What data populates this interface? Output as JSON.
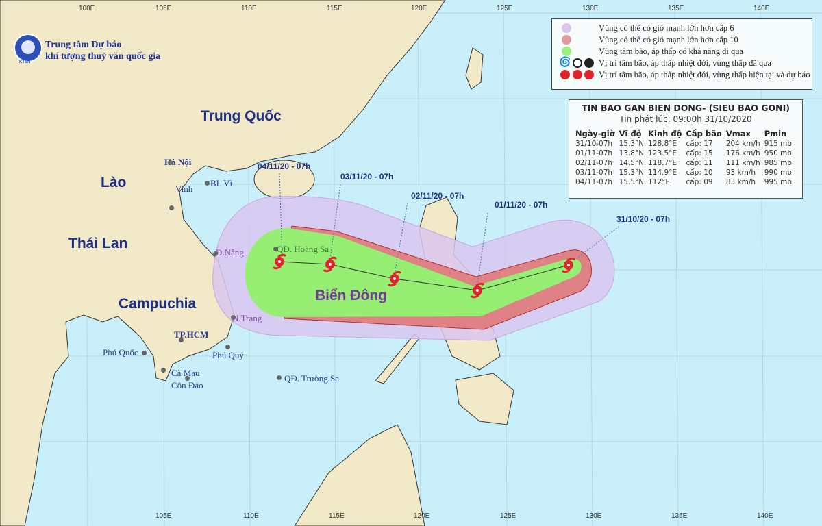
{
  "logo": {
    "badge": "KTVN",
    "line1": "Trung tâm Dự báo",
    "line2": "khí tượng thuỷ văn quốc gia"
  },
  "longitude_ticks": [
    "100E",
    "105E",
    "110E",
    "115E",
    "120E",
    "125E",
    "130E",
    "135E",
    "140E"
  ],
  "longitude_ticks_bottom": [
    "105E",
    "110E",
    "115E",
    "120E",
    "125E",
    "130E",
    "135E",
    "140E"
  ],
  "countries": {
    "china": "Trung Quốc",
    "laos": "Lào",
    "thailand": "Thái Lan",
    "cambodia": "Campuchia",
    "sea": "Biển Đông"
  },
  "places": [
    "Hà Nội",
    "BL Vĩ",
    "Vinh",
    "Đ.Nẵng",
    "QĐ. Hoàng Sa",
    "N.Trang",
    "TP.HCM",
    "Phú Quốc",
    "Phú Quý",
    "Cà Mau",
    "Côn Đảo",
    "QĐ. Trường Sa"
  ],
  "legend": [
    {
      "label": "Vùng có thể có gió mạnh lớn hơn cấp 6",
      "color": "#d9c6ee"
    },
    {
      "label": "Vùng có thể có gió mạnh lớn hơn cấp 10",
      "color": "#e39a9a"
    },
    {
      "label": "Vùng tâm bão, áp thấp có khả năng đi qua",
      "color": "#9cf07c"
    },
    {
      "label": "Vị trí tâm bão, áp thấp nhiệt đới, vùng thấp đã qua",
      "color": "#222222"
    },
    {
      "label": "Vị trí tâm bão, áp thấp nhiệt đới, vùng thấp hiện tại và dự báo",
      "color": "#e0242a"
    }
  ],
  "bulletin": {
    "title": "TIN BAO GAN BIEN DONG- (SIEU BAO GONI)",
    "issued": "Tin phát lúc: 09:00h 31/10/2020",
    "columns": [
      "Ngày-giờ",
      "Vĩ độ",
      "Kinh độ",
      "Cấp bão",
      "Vmax",
      "Pmin"
    ],
    "rows": [
      [
        "31/10-07h",
        "15.3°N",
        "128.8°E",
        "cấp: 17",
        "204 km/h",
        "915 mb"
      ],
      [
        "01/11-07h",
        "13.8°N",
        "123.5°E",
        "cấp: 15",
        "176 km/h",
        "950 mb"
      ],
      [
        "02/11-07h",
        "14.5°N",
        "118.7°E",
        "cấp: 11",
        "111 km/h",
        "985 mb"
      ],
      [
        "03/11-07h",
        "15.3°N",
        "114.9°E",
        "cấp: 10",
        "93 km/h",
        "990 mb"
      ],
      [
        "04/11-07h",
        "15.5°N",
        "112°E",
        "cấp: 09",
        "83 km/h",
        "995 mb"
      ]
    ]
  },
  "track_labels": [
    "31/10/20 - 07h",
    "01/11/20 - 07h",
    "02/11/20 - 07h",
    "03/11/20 - 07h",
    "04/11/20 - 07h"
  ],
  "colors": {
    "sea": "#c9f0fa",
    "land": "#f1e9c8",
    "cone6": "#d9c6ee",
    "cone10": "#e07a7a",
    "center_zone": "#96ee72",
    "storm": "#e0242a"
  }
}
